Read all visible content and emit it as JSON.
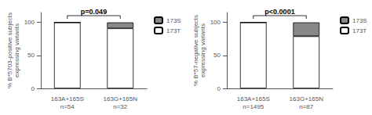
{
  "chart_data": [
    {
      "type": "bar",
      "stacked": true,
      "grid": false,
      "legend": "upper right",
      "ylabel": "% B*5703-positive subjects\nexpressing variants",
      "categories": [
        "163A+165S",
        "163G+165N"
      ],
      "series": [
        {
          "name": "173T",
          "color": "#ffffff",
          "values": [
            100,
            91
          ]
        },
        {
          "name": "173S",
          "color": "#888888",
          "values": [
            0,
            9
          ]
        }
      ],
      "ylim": [
        0,
        115
      ],
      "yticks": [
        0,
        50,
        100
      ],
      "annotations": [
        {
          "text": "n=54",
          "category": "163A+165S"
        },
        {
          "text": "n=32",
          "category": "163G+165N"
        },
        {
          "text": "p=0.049",
          "bracket": [
            "163A+165S",
            "163G+165N"
          ]
        }
      ]
    },
    {
      "type": "bar",
      "stacked": true,
      "grid": false,
      "legend": "upper right",
      "ylabel": "% B*57-negative subjects\nexpressing variants",
      "categories": [
        "163A+165S",
        "163G+165N"
      ],
      "series": [
        {
          "name": "173T",
          "color": "#ffffff",
          "values": [
            100,
            79
          ]
        },
        {
          "name": "173S",
          "color": "#888888",
          "values": [
            0,
            21
          ]
        }
      ],
      "ylim": [
        0,
        115
      ],
      "yticks": [
        0,
        50,
        100
      ],
      "annotations": [
        {
          "text": "n=1495",
          "category": "163A+165S"
        },
        {
          "text": "n=87",
          "category": "163G+165N"
        },
        {
          "text": "p<0.0001",
          "bracket": [
            "163A+165S",
            "163G+165N"
          ]
        }
      ]
    }
  ]
}
